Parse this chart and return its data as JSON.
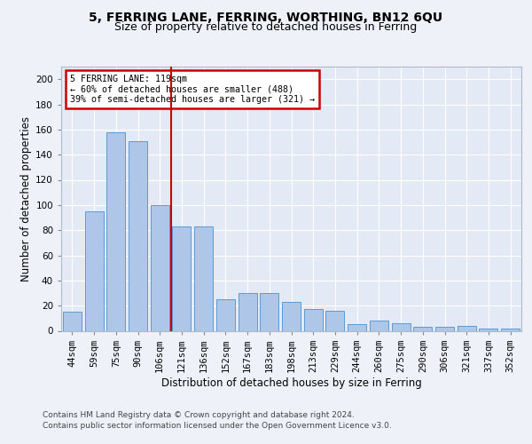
{
  "title1": "5, FERRING LANE, FERRING, WORTHING, BN12 6QU",
  "title2": "Size of property relative to detached houses in Ferring",
  "xlabel": "Distribution of detached houses by size in Ferring",
  "ylabel": "Number of detached properties",
  "categories": [
    "44sqm",
    "59sqm",
    "75sqm",
    "90sqm",
    "106sqm",
    "121sqm",
    "136sqm",
    "152sqm",
    "167sqm",
    "183sqm",
    "198sqm",
    "213sqm",
    "229sqm",
    "244sqm",
    "260sqm",
    "275sqm",
    "290sqm",
    "306sqm",
    "321sqm",
    "337sqm",
    "352sqm"
  ],
  "values": [
    15,
    95,
    158,
    151,
    100,
    83,
    83,
    25,
    30,
    30,
    23,
    17,
    16,
    5,
    8,
    6,
    3,
    3,
    4,
    2,
    2
  ],
  "bar_color": "#aec6e8",
  "bar_edge_color": "#5b9bd5",
  "annotation_line1": "5 FERRING LANE: 119sqm",
  "annotation_line2": "← 60% of detached houses are smaller (488)",
  "annotation_line3": "39% of semi-detached houses are larger (321) →",
  "annotation_box_color": "#ffffff",
  "annotation_box_edge_color": "#cc0000",
  "vline_color": "#cc0000",
  "ylim": [
    0,
    210
  ],
  "yticks": [
    0,
    20,
    40,
    60,
    80,
    100,
    120,
    140,
    160,
    180,
    200
  ],
  "footer1": "Contains HM Land Registry data © Crown copyright and database right 2024.",
  "footer2": "Contains public sector information licensed under the Open Government Licence v3.0.",
  "bg_color": "#eef2f8",
  "plot_bg_color": "#e4eaf5",
  "grid_color": "#ffffff",
  "title1_fontsize": 10,
  "title2_fontsize": 9,
  "xlabel_fontsize": 8.5,
  "ylabel_fontsize": 8.5,
  "tick_fontsize": 7.5,
  "footer_fontsize": 6.5
}
